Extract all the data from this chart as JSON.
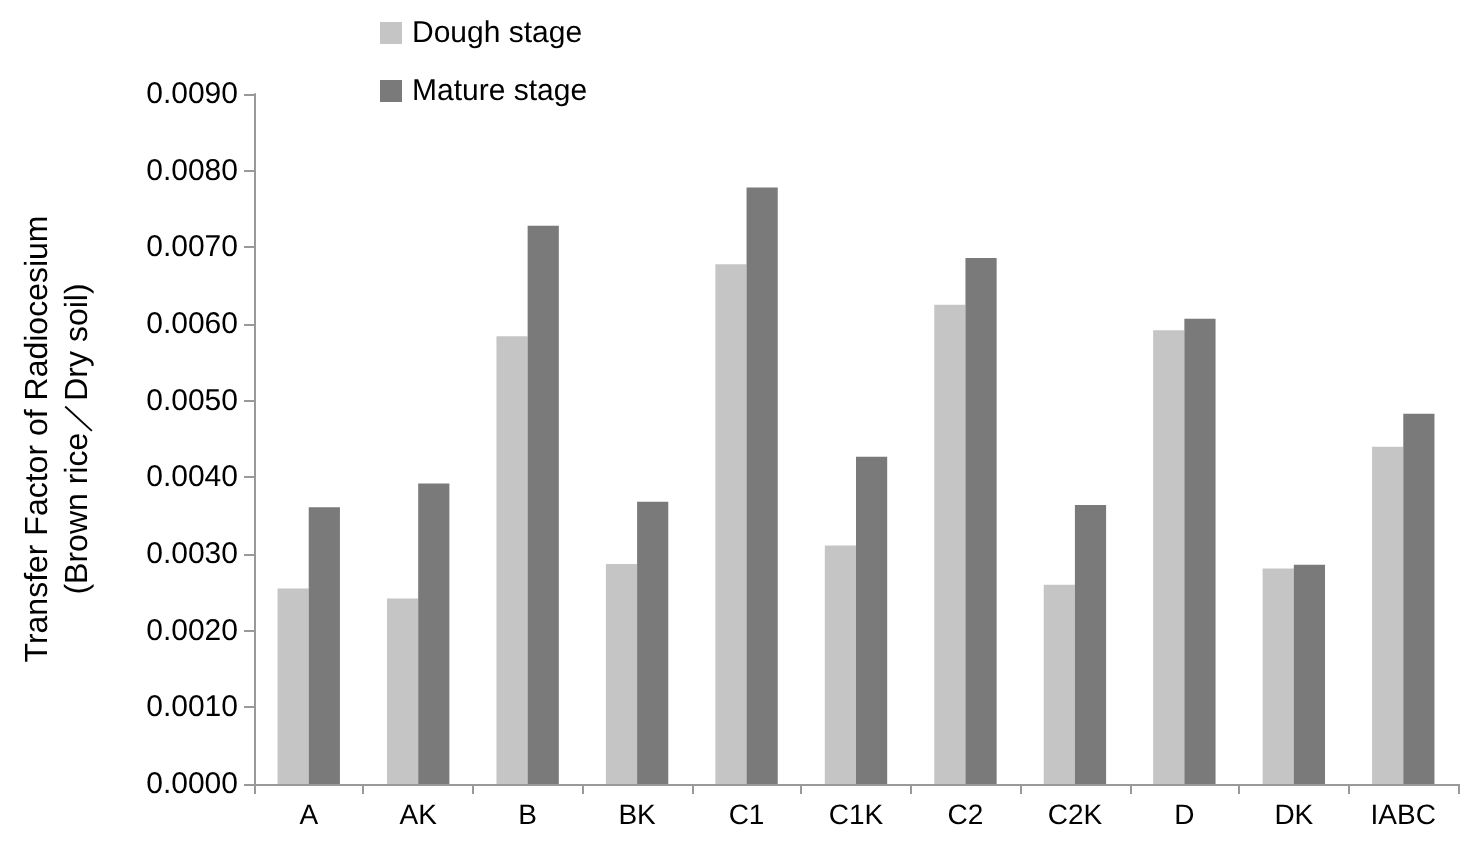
{
  "chart_data": {
    "type": "bar",
    "ylabel": "Transfer Factor of Radiocesium\n(Brown rice／Dry soil)",
    "categories": [
      "A",
      "AK",
      "B",
      "BK",
      "C1",
      "C1K",
      "C2",
      "C2K",
      "D",
      "DK",
      "IABC"
    ],
    "series": [
      {
        "name": "Dough stage",
        "color": "#c4c5c4",
        "values": [
          0.00255,
          0.00242,
          0.00584,
          0.00287,
          0.00678,
          0.00311,
          0.00625,
          0.0026,
          0.00592,
          0.00281,
          0.0044
        ]
      },
      {
        "name": "Mature stage",
        "color": "#7a7a7a",
        "values": [
          0.00361,
          0.00392,
          0.00728,
          0.00368,
          0.00778,
          0.00427,
          0.00686,
          0.00364,
          0.00607,
          0.00286,
          0.00483
        ]
      }
    ],
    "ylim": [
      0,
      0.009
    ],
    "yticks": [
      {
        "value": 0,
        "label": "0.0000"
      },
      {
        "value": 0.001,
        "label": "0.0010"
      },
      {
        "value": 0.002,
        "label": "0.0020"
      },
      {
        "value": 0.003,
        "label": "0.0030"
      },
      {
        "value": 0.004,
        "label": "0.0040"
      },
      {
        "value": 0.005,
        "label": "0.0050"
      },
      {
        "value": 0.006,
        "label": "0.0060"
      },
      {
        "value": 0.007,
        "label": "0.0070"
      },
      {
        "value": 0.008,
        "label": "0.0080"
      },
      {
        "value": 0.009,
        "label": "0.0090"
      }
    ],
    "grid": false,
    "legend": "top left"
  }
}
